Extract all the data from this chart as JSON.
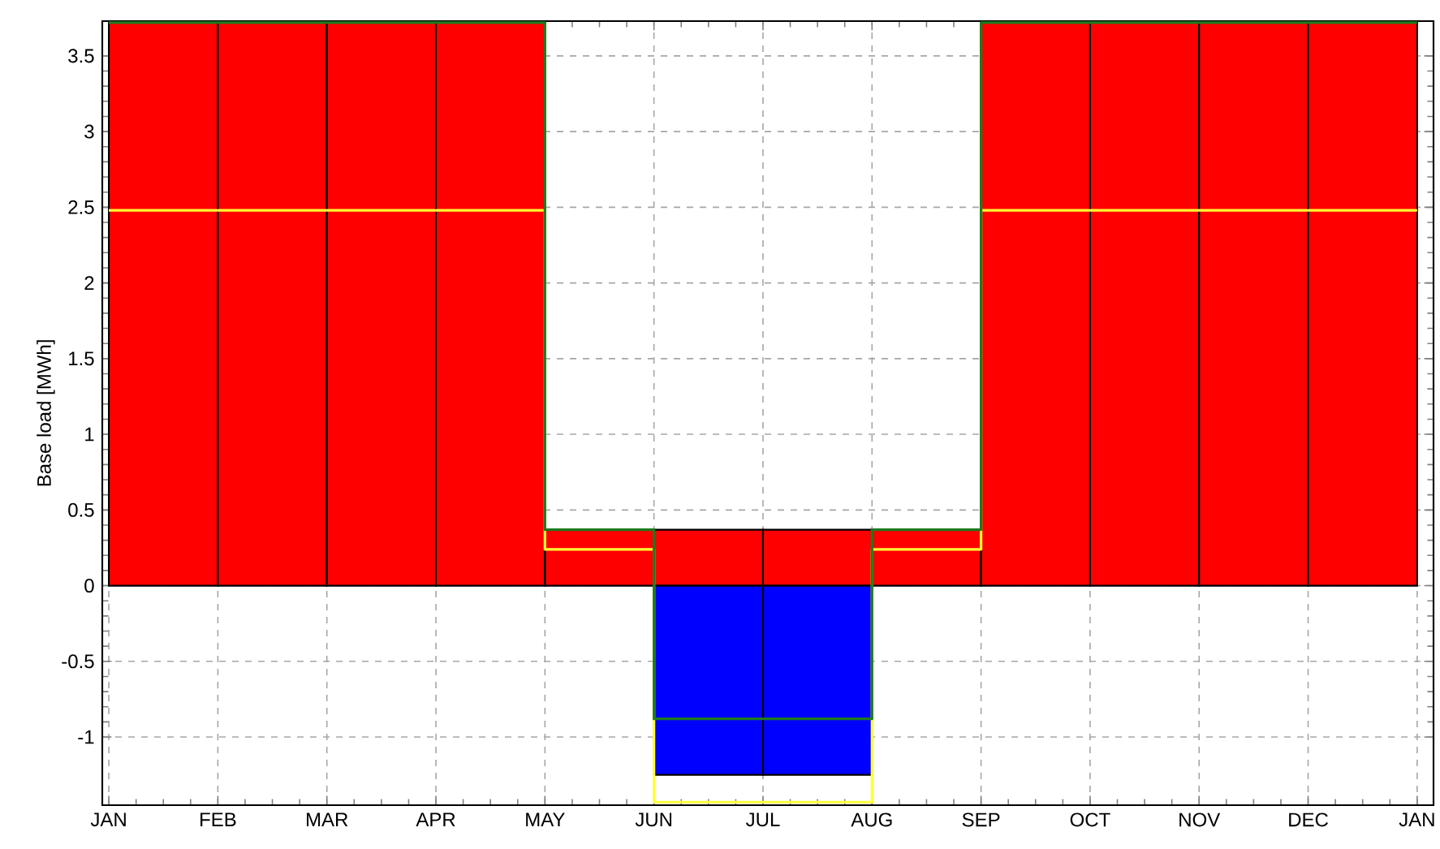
{
  "chart_data": {
    "type": "bar",
    "ylabel": "Base load [MWh]",
    "categories": [
      "JAN",
      "FEB",
      "MAR",
      "APR",
      "MAY",
      "JUN",
      "JUL",
      "AUG",
      "SEP",
      "OCT",
      "NOV",
      "DEC",
      "JAN"
    ],
    "ylim": [
      -1.45,
      3.73
    ],
    "yticks": [
      -1,
      -0.5,
      0,
      0.5,
      1,
      1.5,
      2,
      2.5,
      3,
      3.5
    ],
    "grid": true,
    "series": [
      {
        "color": "#ff0000",
        "values": [
          3.72,
          3.72,
          3.72,
          3.72,
          0.37,
          0.37,
          0.37,
          0.37,
          3.72,
          3.72,
          3.72,
          3.72,
          null
        ]
      },
      {
        "color": "#0000ff",
        "values": [
          null,
          null,
          null,
          null,
          null,
          -1.25,
          -1.25,
          null,
          null,
          null,
          null,
          null,
          null
        ]
      },
      {
        "type": "step",
        "color": "#ffff33",
        "values": [
          2.48,
          2.48,
          2.48,
          2.48,
          0.24,
          -1.43,
          -1.43,
          0.24,
          2.48,
          2.48,
          2.48,
          2.48,
          2.48
        ]
      },
      {
        "type": "step",
        "color": "#1e7a1e",
        "values": [
          3.72,
          3.72,
          3.72,
          3.72,
          0.37,
          -0.88,
          -0.88,
          0.37,
          3.72,
          3.72,
          3.72,
          3.72,
          3.72
        ]
      }
    ]
  }
}
